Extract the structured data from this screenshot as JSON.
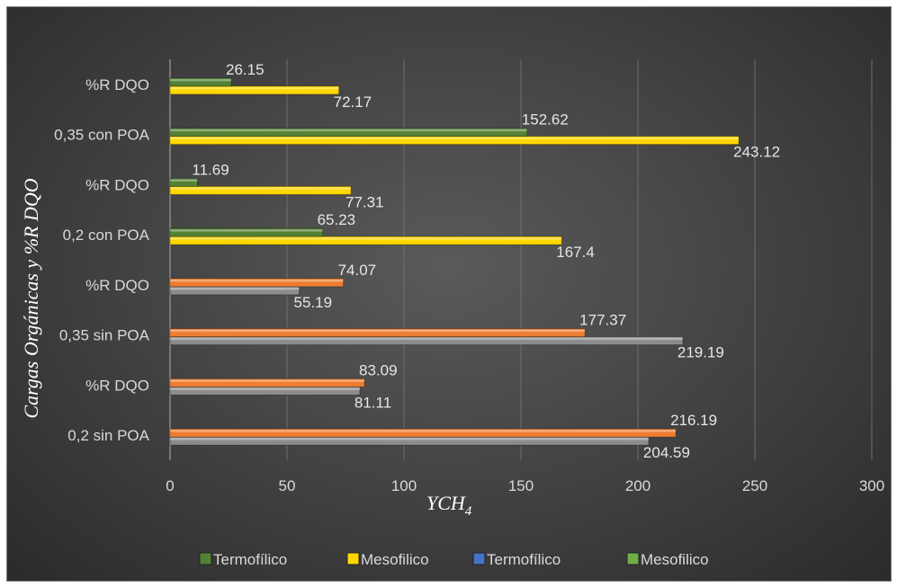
{
  "chart_data": {
    "type": "bar",
    "orientation": "horizontal",
    "categories": [
      "0,2 sin POA",
      "%R DQO",
      "0,35 sin POA",
      "%R DQO",
      "0,2 con POA",
      "%R DQO",
      "0,35 con POA",
      "%R DQO"
    ],
    "xlabel": "YCH4",
    "xlabel_main": "YCH",
    "xlabel_sub": "4",
    "ylabel": "Cargas Orgánicas y %R DQO",
    "xlim": [
      0,
      300
    ],
    "xticks": [
      0,
      50,
      100,
      150,
      200,
      250,
      300
    ],
    "grid": true,
    "legend_position": "bottom",
    "series": [
      {
        "name": "Termofílico",
        "color": "#8c8c8c",
        "values": [
          204.59,
          81.11,
          219.19,
          55.19,
          null,
          null,
          null,
          null
        ]
      },
      {
        "name": "Mesofílico",
        "color": "#ed7d31",
        "values": [
          216.19,
          83.09,
          177.37,
          74.07,
          null,
          null,
          null,
          null
        ]
      },
      {
        "name": "Termofílico",
        "color": "#4472c4",
        "values": [
          null,
          null,
          null,
          null,
          null,
          null,
          null,
          null
        ]
      },
      {
        "name": "Mesofílico",
        "color": "#70ad47",
        "values": [
          null,
          null,
          null,
          null,
          null,
          null,
          null,
          null
        ]
      },
      {
        "name": "Mesofilico",
        "color": "#ffd700",
        "values": [
          null,
          null,
          null,
          null,
          167.4,
          77.31,
          243.12,
          72.17
        ]
      },
      {
        "name": "Termofílico",
        "color": "#548235",
        "values": [
          null,
          null,
          null,
          null,
          65.23,
          11.69,
          152.62,
          26.15
        ]
      }
    ],
    "legend": [
      {
        "label": "Termofílico",
        "color": "#548235",
        "icon": "green-square-icon"
      },
      {
        "label": "Mesofilico",
        "color": "#ffd700",
        "icon": "yellow-square-icon"
      },
      {
        "label": "Termofílico",
        "color": "#4472c4",
        "icon": "blue-square-icon"
      },
      {
        "label": "Mesofilico",
        "color": "#70ad47",
        "icon": "light-green-square-icon"
      }
    ]
  }
}
